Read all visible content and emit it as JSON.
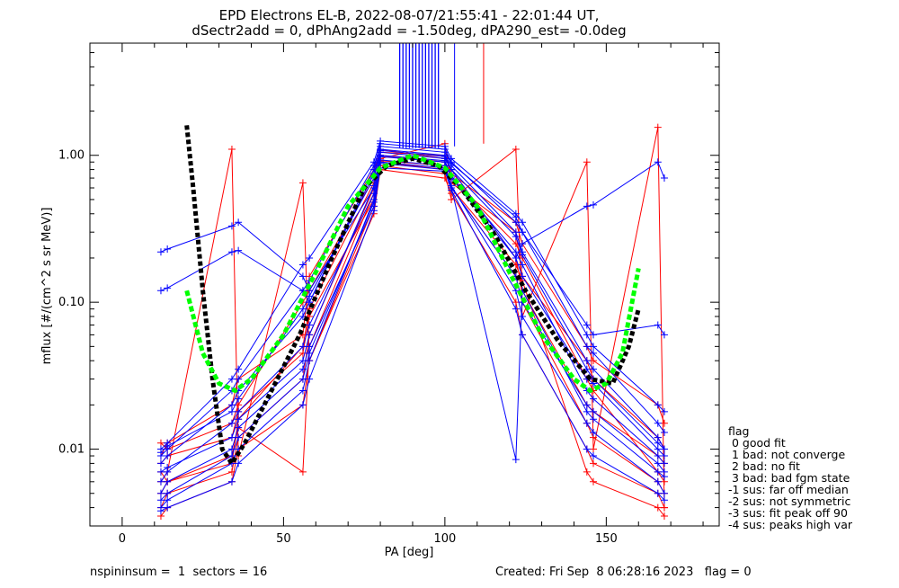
{
  "chart_data": {
    "type": "line",
    "title_line1": "EPD Electrons EL-B, 2022-08-07/21:55:41 - 22:01:44 UT,",
    "title_line2": "dSectr2add = 0, dPhAng2add = -1.50deg, dPA290_est=  -0.0deg",
    "xlabel": "PA [deg]",
    "ylabel": "mflux [#/(cm^2 s sr MeV)]",
    "xlim": [
      -10,
      185
    ],
    "ylim": [
      0.003,
      5.8
    ],
    "yscale": "log",
    "x_ticks": [
      {
        "value": 0,
        "label": "0"
      },
      {
        "value": 50,
        "label": "50"
      },
      {
        "value": 100,
        "label": "100"
      },
      {
        "value": 150,
        "label": "150"
      }
    ],
    "y_ticks": [
      {
        "value": 0.01,
        "label": "0.01"
      },
      {
        "value": 0.1,
        "label": "0.10"
      },
      {
        "value": 1.0,
        "label": "1.00"
      }
    ],
    "sector_pa": [
      12,
      14,
      34,
      36,
      56,
      58,
      78,
      80,
      100,
      102,
      122,
      124,
      144,
      146,
      166,
      168
    ],
    "red_series": [
      [
        0.008,
        0.009,
        0.012,
        0.018,
        0.045,
        0.08,
        0.5,
        0.9,
        0.8,
        0.6,
        0.15,
        0.1,
        0.015,
        0.012,
        0.006,
        0.005
      ],
      [
        0.004,
        0.005,
        0.007,
        0.012,
        0.03,
        0.06,
        0.6,
        1.0,
        0.9,
        0.7,
        0.25,
        0.2,
        0.03,
        0.025,
        0.007,
        0.006
      ],
      [
        0.011,
        0.01,
        0.015,
        0.02,
        0.1,
        0.12,
        0.7,
        1.1,
        0.95,
        0.8,
        0.2,
        0.12,
        0.02,
        0.018,
        0.009,
        0.008
      ],
      [
        0.006,
        0.007,
        1.1,
        0.009,
        0.65,
        0.04,
        0.45,
        0.85,
        0.75,
        0.5,
        1.1,
        0.08,
        0.9,
        0.01,
        1.55,
        0.004
      ],
      [
        0.005,
        0.006,
        0.009,
        0.014,
        0.007,
        0.05,
        0.55,
        0.95,
        1.2,
        0.65,
        0.3,
        0.15,
        0.04,
        0.03,
        0.012,
        0.01
      ],
      [
        0.0035,
        0.004,
        0.006,
        0.01,
        0.02,
        0.04,
        0.4,
        0.8,
        0.7,
        0.55,
        0.1,
        0.06,
        0.01,
        0.008,
        0.005,
        0.004
      ],
      [
        0.009,
        0.011,
        0.02,
        0.03,
        0.06,
        0.15,
        0.8,
        1.05,
        1.0,
        0.75,
        0.35,
        0.25,
        0.05,
        0.04,
        0.02,
        0.015
      ],
      [
        0.007,
        0.006,
        0.008,
        0.016,
        0.05,
        0.09,
        0.65,
        0.92,
        0.85,
        0.6,
        0.18,
        0.14,
        0.007,
        0.006,
        0.004,
        0.0035
      ]
    ],
    "blue_series": [
      [
        0.22,
        0.23,
        0.33,
        0.35,
        0.15,
        0.12,
        0.6,
        1.05,
        0.95,
        0.8,
        0.2,
        0.25,
        0.45,
        0.46,
        0.9,
        0.7
      ],
      [
        0.12,
        0.125,
        0.22,
        0.225,
        0.12,
        0.1,
        0.8,
        1.2,
        1.1,
        0.9,
        0.35,
        0.3,
        0.07,
        0.06,
        0.07,
        0.06
      ],
      [
        0.01,
        0.011,
        0.03,
        0.035,
        0.18,
        0.2,
        0.9,
        1.25,
        1.15,
        0.95,
        0.4,
        0.35,
        0.06,
        0.05,
        0.02,
        0.018
      ],
      [
        0.008,
        0.009,
        0.02,
        0.025,
        0.08,
        0.1,
        0.75,
        1.1,
        1.0,
        0.85,
        0.3,
        0.22,
        0.04,
        0.035,
        0.012,
        0.01
      ],
      [
        0.006,
        0.007,
        0.015,
        0.018,
        0.05,
        0.07,
        0.55,
        0.98,
        0.9,
        0.7,
        0.2,
        0.15,
        0.03,
        0.028,
        0.01,
        0.009
      ],
      [
        0.005,
        0.006,
        0.01,
        0.014,
        0.035,
        0.05,
        0.45,
        0.88,
        0.8,
        0.6,
        0.15,
        0.1,
        0.02,
        0.018,
        0.008,
        0.007
      ],
      [
        0.004,
        0.0045,
        0.008,
        0.01,
        0.025,
        0.04,
        0.5,
        0.93,
        0.85,
        0.62,
        0.12,
        0.08,
        0.015,
        0.013,
        0.006,
        0.005
      ],
      [
        0.0038,
        0.004,
        0.006,
        0.008,
        0.02,
        0.03,
        0.42,
        0.82,
        0.78,
        0.58,
        0.09,
        0.06,
        0.01,
        0.009,
        0.005,
        0.0045
      ],
      [
        0.009,
        0.01,
        0.025,
        0.03,
        0.12,
        0.14,
        0.85,
        1.15,
        1.05,
        0.88,
        0.38,
        0.3,
        0.05,
        0.045,
        0.015,
        0.013
      ],
      [
        0.007,
        0.0075,
        0.012,
        0.016,
        0.04,
        0.06,
        0.62,
        1.0,
        0.92,
        0.72,
        0.22,
        0.18,
        0.025,
        0.022,
        0.009,
        0.008
      ],
      [
        0.0045,
        0.005,
        0.009,
        0.012,
        0.03,
        0.045,
        0.48,
        0.9,
        0.82,
        0.6,
        0.0085,
        0.12,
        0.018,
        0.016,
        0.007,
        0.0065
      ],
      [
        0.0095,
        0.0105,
        0.018,
        0.022,
        0.09,
        0.11,
        0.7,
        1.08,
        0.98,
        0.8,
        0.28,
        0.21,
        0.035,
        0.03,
        0.011,
        0.01
      ]
    ],
    "spike_pa": [
      86,
      87,
      88,
      89,
      90,
      91,
      92,
      93,
      94,
      95,
      96,
      97,
      98
    ],
    "spike_base": 1.12,
    "green_fit": [
      {
        "x": 20,
        "y": 0.12
      },
      {
        "x": 25,
        "y": 0.045
      },
      {
        "x": 30,
        "y": 0.028
      },
      {
        "x": 35,
        "y": 0.025
      },
      {
        "x": 40,
        "y": 0.03
      },
      {
        "x": 50,
        "y": 0.06
      },
      {
        "x": 60,
        "y": 0.16
      },
      {
        "x": 70,
        "y": 0.45
      },
      {
        "x": 80,
        "y": 0.82
      },
      {
        "x": 90,
        "y": 1.0
      },
      {
        "x": 100,
        "y": 0.82
      },
      {
        "x": 110,
        "y": 0.45
      },
      {
        "x": 120,
        "y": 0.16
      },
      {
        "x": 130,
        "y": 0.06
      },
      {
        "x": 140,
        "y": 0.03
      },
      {
        "x": 145,
        "y": 0.025
      },
      {
        "x": 150,
        "y": 0.028
      },
      {
        "x": 155,
        "y": 0.045
      },
      {
        "x": 160,
        "y": 0.17
      }
    ],
    "black_fit": [
      {
        "x": 20,
        "y": 1.6
      },
      {
        "x": 22,
        "y": 0.6
      },
      {
        "x": 25,
        "y": 0.12
      },
      {
        "x": 28,
        "y": 0.03
      },
      {
        "x": 31,
        "y": 0.01
      },
      {
        "x": 34,
        "y": 0.008
      },
      {
        "x": 38,
        "y": 0.011
      },
      {
        "x": 45,
        "y": 0.022
      },
      {
        "x": 55,
        "y": 0.06
      },
      {
        "x": 65,
        "y": 0.2
      },
      {
        "x": 75,
        "y": 0.6
      },
      {
        "x": 82,
        "y": 0.85
      },
      {
        "x": 90,
        "y": 0.95
      },
      {
        "x": 98,
        "y": 0.85
      },
      {
        "x": 105,
        "y": 0.6
      },
      {
        "x": 115,
        "y": 0.3
      },
      {
        "x": 125,
        "y": 0.12
      },
      {
        "x": 135,
        "y": 0.055
      },
      {
        "x": 145,
        "y": 0.03
      },
      {
        "x": 152,
        "y": 0.028
      },
      {
        "x": 157,
        "y": 0.05
      },
      {
        "x": 160,
        "y": 0.09
      }
    ],
    "red_outlier": {
      "x1": 112,
      "y1": 1.2,
      "x2": 112,
      "y2": 5.8
    },
    "blue_outlier": {
      "x1": 103,
      "y1": 1.15,
      "x2": 103,
      "y2": 5.8
    }
  },
  "legend": {
    "title": "flag",
    "items": [
      " 0 good fit",
      " 1 bad: not converge",
      " 2 bad: no fit",
      " 3 bad: bad fgm state",
      "-1 sus: far off median",
      "-2 sus: not symmetric",
      "-3 sus: fit peak off 90",
      "-4 sus: peaks high var"
    ]
  },
  "footer": {
    "left": "nspininsum =  1  sectors = 16",
    "right": "Created: Fri Sep  8 06:28:16 2023   flag = 0"
  },
  "colors": {
    "red": "#ff0000",
    "blue": "#0000ff",
    "green": "#00ff00",
    "black": "#000000"
  }
}
